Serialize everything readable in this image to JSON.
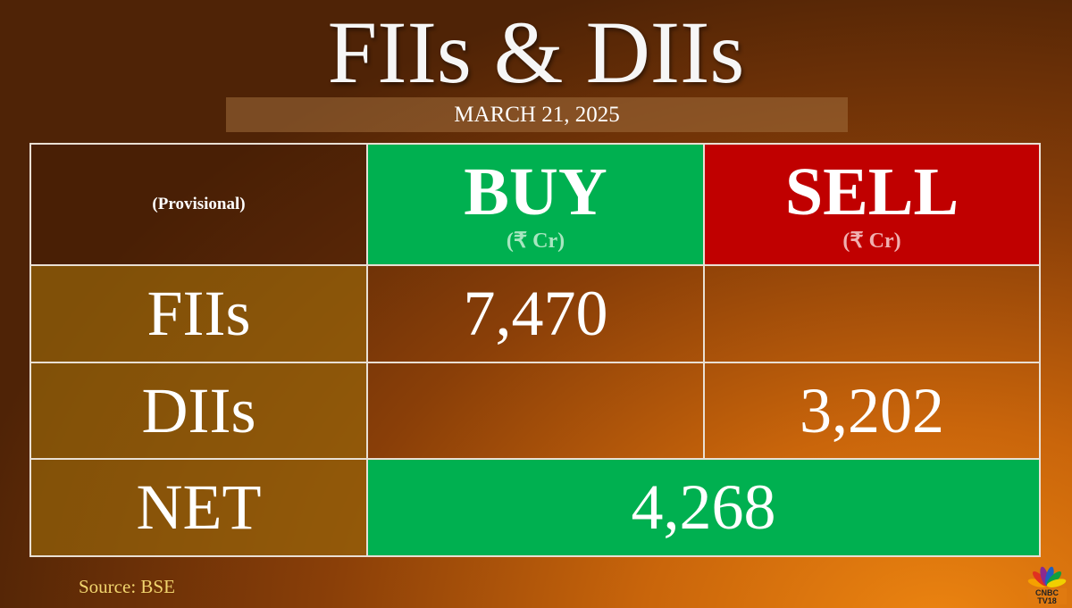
{
  "title": "FIIs & DIIs",
  "date": "MARCH 21, 2025",
  "table": {
    "corner": "(Provisional)",
    "buy": {
      "label": "BUY",
      "unit": "(₹ Cr)"
    },
    "sell": {
      "label": "SELL",
      "unit": "(₹ Cr)"
    },
    "rows": [
      {
        "label": "FIIs",
        "buy": "7,470",
        "sell": ""
      },
      {
        "label": "DIIs",
        "buy": "",
        "sell": "3,202"
      }
    ],
    "net": {
      "label": "NET",
      "value": "4,268"
    }
  },
  "source": "Source: BSE",
  "logo": {
    "text": "CNBC TV18"
  },
  "colors": {
    "buy": "#00b050",
    "sell": "#c00000"
  }
}
